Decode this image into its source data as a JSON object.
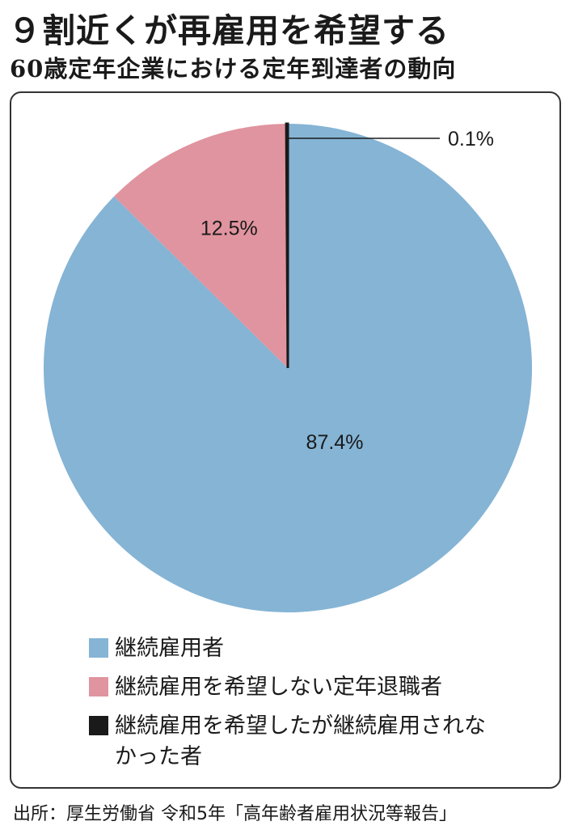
{
  "title": "９割近くが再雇用を希望する",
  "subtitle": "60歳定年企業における定年到達者の動向",
  "chart_data": {
    "type": "pie",
    "start": "top",
    "direction": "clockwise",
    "slices": [
      {
        "label": "継続雇用者",
        "value": 87.4,
        "value_label": "87.4%",
        "color": "#85b4d5"
      },
      {
        "label": "継続雇用を希望しない定年退職者",
        "value": 12.5,
        "value_label": "12.5%",
        "color": "#e0949f"
      },
      {
        "label": "継続雇用を希望したが継続雇用されなかった者",
        "value": 0.1,
        "value_label": "0.1%",
        "color": "#1a1a1a"
      }
    ]
  },
  "source": "出所：厚生労働省 令和5年「高年齢者雇用状況等報告」"
}
